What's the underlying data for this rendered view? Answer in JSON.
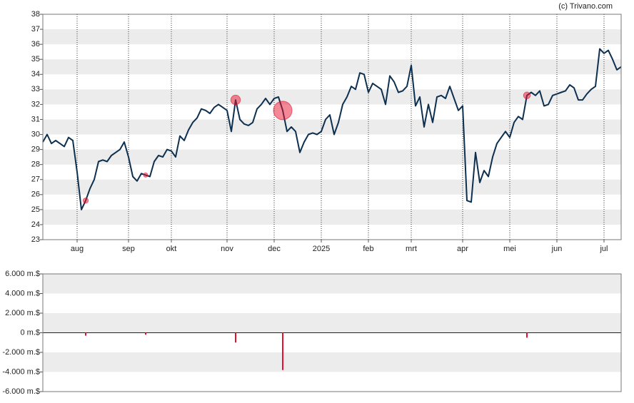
{
  "chart_data": [
    {
      "type": "line",
      "source": "(c) Trivano.com",
      "categories": [
        null,
        null,
        null,
        null,
        null,
        null,
        null,
        null,
        "aug",
        null,
        null,
        null,
        null,
        null,
        null,
        null,
        null,
        null,
        null,
        null,
        "sep",
        null,
        null,
        null,
        null,
        null,
        null,
        null,
        null,
        null,
        "okt",
        null,
        null,
        null,
        null,
        null,
        null,
        null,
        null,
        null,
        null,
        null,
        null,
        "nov",
        null,
        null,
        null,
        null,
        null,
        null,
        null,
        null,
        null,
        null,
        "dec",
        null,
        null,
        null,
        null,
        null,
        null,
        null,
        null,
        null,
        null,
        "2025",
        null,
        null,
        null,
        null,
        null,
        null,
        null,
        null,
        null,
        null,
        "feb",
        null,
        null,
        null,
        null,
        null,
        null,
        null,
        null,
        null,
        "mrt",
        null,
        null,
        null,
        null,
        null,
        null,
        null,
        null,
        null,
        null,
        null,
        "apr",
        null,
        null,
        null,
        null,
        null,
        null,
        null,
        null,
        null,
        null,
        "mei",
        null,
        null,
        null,
        null,
        null,
        null,
        null,
        null,
        null,
        null,
        "jun",
        null,
        null,
        null,
        null,
        null,
        null,
        null,
        null,
        null,
        null,
        "jul",
        null,
        null,
        null,
        null
      ],
      "series": [
        {
          "color": "#0d3050",
          "values": [
            29.5,
            30.0,
            29.4,
            29.6,
            29.4,
            29.2,
            29.8,
            29.6,
            27.5,
            25.0,
            25.6,
            26.4,
            27.0,
            28.2,
            28.3,
            28.2,
            28.6,
            28.8,
            29.0,
            29.5,
            28.5,
            27.2,
            26.9,
            27.4,
            27.3,
            27.2,
            28.2,
            28.6,
            28.5,
            29.0,
            28.9,
            28.5,
            29.9,
            29.6,
            30.3,
            30.8,
            31.1,
            31.7,
            31.6,
            31.4,
            31.8,
            32.0,
            31.8,
            31.6,
            30.2,
            32.3,
            31.0,
            30.7,
            30.6,
            30.8,
            31.7,
            32.0,
            32.4,
            32.0,
            32.4,
            32.5,
            31.6,
            30.2,
            30.5,
            30.2,
            28.8,
            29.5,
            30.0,
            30.1,
            30.0,
            30.2,
            31.0,
            31.3,
            30.0,
            30.8,
            32.0,
            32.5,
            33.2,
            33.0,
            34.1,
            34.0,
            32.8,
            33.4,
            33.2,
            33.0,
            32.0,
            33.9,
            33.5,
            32.8,
            32.9,
            33.2,
            34.6,
            31.9,
            32.5,
            30.5,
            32.0,
            30.8,
            32.5,
            32.6,
            32.4,
            33.2,
            32.4,
            31.6,
            31.9,
            25.6,
            25.5,
            28.8,
            26.8,
            27.6,
            27.2,
            28.5,
            29.4,
            29.8,
            30.2,
            29.8,
            30.8,
            31.2,
            31.0,
            32.6,
            32.8,
            32.6,
            32.9,
            31.9,
            32.0,
            32.6,
            32.7,
            32.8,
            32.9,
            33.3,
            33.1,
            32.3,
            32.3,
            32.7,
            33.0,
            33.2,
            35.7,
            35.4,
            35.6,
            35.0,
            34.3,
            34.5
          ]
        }
      ],
      "ylim": [
        23,
        38
      ],
      "yticks": [
        23,
        24,
        25,
        26,
        27,
        28,
        29,
        30,
        31,
        32,
        33,
        34,
        35,
        36,
        37,
        38
      ],
      "grid": "bands"
    },
    {
      "type": "bar",
      "color": "#e8112d",
      "values": [
        null,
        null,
        null,
        null,
        null,
        null,
        null,
        null,
        null,
        null,
        -300,
        null,
        null,
        null,
        null,
        null,
        null,
        null,
        null,
        null,
        null,
        null,
        null,
        null,
        -200,
        null,
        null,
        null,
        null,
        null,
        null,
        null,
        null,
        null,
        null,
        null,
        null,
        null,
        null,
        null,
        null,
        null,
        null,
        null,
        null,
        -1000,
        null,
        null,
        null,
        null,
        null,
        null,
        null,
        null,
        null,
        null,
        -3800,
        null,
        null,
        null,
        null,
        null,
        null,
        null,
        null,
        null,
        null,
        null,
        null,
        null,
        null,
        null,
        null,
        null,
        null,
        null,
        null,
        null,
        null,
        null,
        null,
        null,
        null,
        null,
        null,
        null,
        null,
        null,
        null,
        null,
        null,
        null,
        null,
        null,
        null,
        null,
        null,
        null,
        null,
        null,
        null,
        null,
        null,
        null,
        null,
        null,
        null,
        null,
        null,
        null,
        null,
        null,
        null,
        -500,
        null,
        null,
        null,
        null,
        null,
        null,
        null,
        null,
        null,
        null,
        null,
        null,
        null,
        null,
        null,
        null,
        null,
        null,
        null,
        null,
        null,
        null
      ],
      "ylim": [
        -6000,
        6000
      ],
      "yticks": [
        {
          "value": -6000,
          "label": "-6.000 m.$"
        },
        {
          "value": -4000,
          "label": "-4.000 m.$"
        },
        {
          "value": -2000,
          "label": "-2.000 m.$"
        },
        {
          "value": 0,
          "label": "0 m.$"
        },
        {
          "value": 2000,
          "label": "2.000 m.$"
        },
        {
          "value": 4000,
          "label": "4.000 m.$"
        },
        {
          "value": 6000,
          "label": "6.000 m.$"
        }
      ],
      "grid": "bands"
    }
  ]
}
